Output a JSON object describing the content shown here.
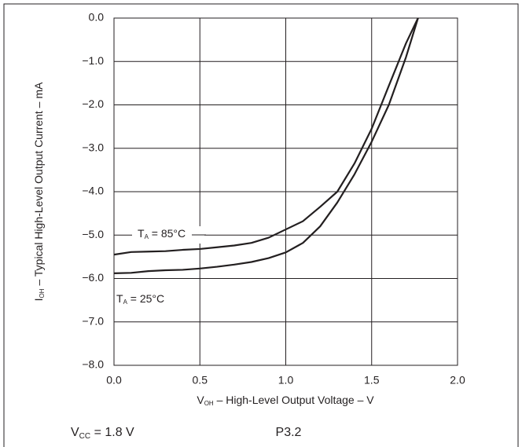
{
  "chart_data": {
    "type": "line",
    "ylabel": {
      "main": "I",
      "sub": "OH",
      "rest": " – Typical High-Level Output Current – mA"
    },
    "xlabel": {
      "main": "V",
      "sub": "OH",
      "rest": " – High-Level Output Voltage – V"
    },
    "x": [
      0,
      0.1,
      0.2,
      0.3,
      0.4,
      0.5,
      0.6,
      0.7,
      0.8,
      0.9,
      1.0,
      1.1,
      1.2,
      1.3,
      1.4,
      1.5,
      1.6,
      1.7,
      1.77
    ],
    "series": [
      {
        "label": {
          "main": "T",
          "sub": "A",
          "rest": " = 85°C"
        },
        "color": "#231f20",
        "values": [
          -5.45,
          -5.39,
          -5.38,
          -5.37,
          -5.34,
          -5.32,
          -5.28,
          -5.24,
          -5.18,
          -5.06,
          -4.87,
          -4.68,
          -4.35,
          -4.0,
          -3.35,
          -2.55,
          -1.56,
          -0.58,
          0
        ]
      },
      {
        "label": {
          "main": "T",
          "sub": "A",
          "rest": " = 25°C"
        },
        "color": "#231f20",
        "values": [
          -5.88,
          -5.87,
          -5.83,
          -5.81,
          -5.8,
          -5.77,
          -5.73,
          -5.68,
          -5.62,
          -5.53,
          -5.4,
          -5.18,
          -4.8,
          -4.25,
          -3.6,
          -2.85,
          -2.0,
          -0.9,
          0
        ]
      }
    ],
    "xlim": [
      0,
      2
    ],
    "ylim": [
      -8,
      0
    ],
    "xticks": [
      {
        "value": 0,
        "label": "0.0"
      },
      0.5,
      {
        "value": 1,
        "label": "1.0"
      },
      1.5,
      {
        "value": 2,
        "label": "2.0"
      }
    ],
    "yticks": [
      {
        "value": 0,
        "label": "0.0"
      },
      {
        "value": -1,
        "label": "−1.0"
      },
      {
        "value": -2,
        "label": "−2.0"
      },
      {
        "value": -3,
        "label": "−3.0"
      },
      {
        "value": -4,
        "label": "−4.0"
      },
      {
        "value": -5,
        "label": "−5.0"
      },
      {
        "value": -6,
        "label": "−6.0"
      },
      {
        "value": -7,
        "label": "−7.0"
      },
      {
        "value": -8,
        "label": "−8.0"
      }
    ],
    "grid": true,
    "footnote": {
      "main": "V",
      "sub": "CC",
      "rest": " = 1.8 V"
    },
    "figure_id": "P3.2"
  }
}
